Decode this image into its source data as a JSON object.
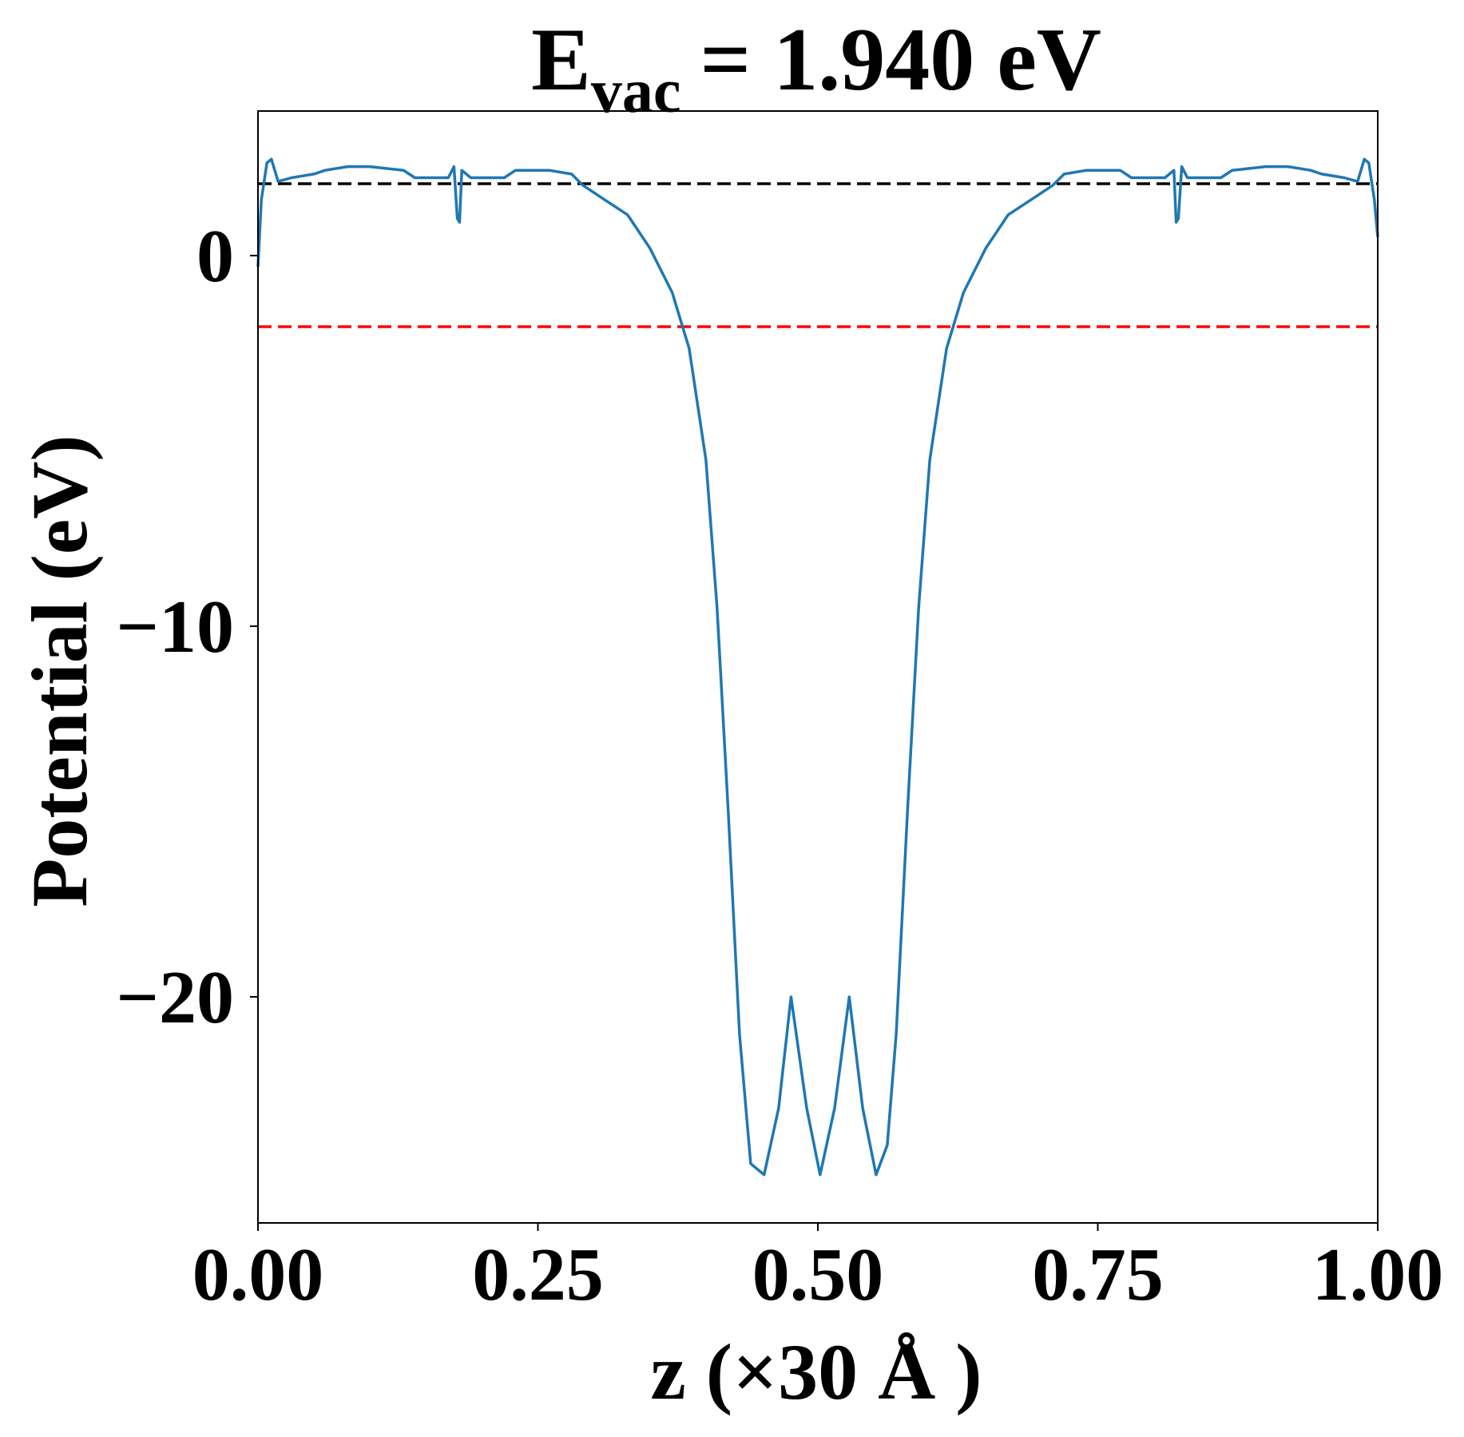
{
  "chart_data": {
    "type": "line",
    "title": {
      "base": "E",
      "subscript": "vac",
      "rest": "= 1.940 eV"
    },
    "x_label": "z (×30 Å )",
    "y_label": "Potential (eV)",
    "xlim": [
      0,
      1
    ],
    "ylim": [
      -26.1,
      3.9
    ],
    "xticks": [
      {
        "value": 0,
        "label": "0.00"
      },
      {
        "value": 0.25,
        "label": "0.25"
      },
      {
        "value": 0.5,
        "label": "0.50"
      },
      {
        "value": 0.75,
        "label": "0.75"
      },
      {
        "value": 1,
        "label": "1.00"
      }
    ],
    "yticks": [
      {
        "value": -20,
        "label": "−20"
      },
      {
        "value": -10,
        "label": "−10"
      },
      {
        "value": 0,
        "label": "0"
      }
    ],
    "hlines": [
      {
        "value": 1.94,
        "color": "#000000"
      },
      {
        "value": -1.92,
        "color": "#ff0000"
      }
    ],
    "series": [
      {
        "color": "#1f77b4",
        "x": [
          0.0,
          0.003,
          0.008,
          0.012,
          0.018,
          0.03,
          0.05,
          0.06,
          0.08,
          0.1,
          0.13,
          0.14,
          0.17,
          0.175,
          0.178,
          0.18,
          0.182,
          0.19,
          0.22,
          0.23,
          0.26,
          0.28,
          0.29,
          0.31,
          0.33,
          0.35,
          0.37,
          0.385,
          0.4,
          0.41,
          0.42,
          0.43,
          0.44,
          0.452,
          0.465,
          0.476,
          0.49,
          0.502,
          0.515,
          0.528,
          0.54,
          0.552,
          0.562,
          0.57,
          0.58,
          0.59,
          0.6,
          0.615,
          0.63,
          0.65,
          0.67,
          0.69,
          0.71,
          0.72,
          0.74,
          0.77,
          0.78,
          0.81,
          0.818,
          0.82,
          0.822,
          0.825,
          0.83,
          0.86,
          0.87,
          0.9,
          0.92,
          0.94,
          0.95,
          0.97,
          0.982,
          0.988,
          0.992,
          0.997,
          1.0
        ],
        "values": [
          -0.3,
          1.5,
          2.5,
          2.6,
          2.0,
          2.1,
          2.2,
          2.3,
          2.4,
          2.4,
          2.3,
          2.1,
          2.1,
          2.4,
          1.0,
          0.9,
          2.3,
          2.1,
          2.1,
          2.3,
          2.3,
          2.2,
          1.9,
          1.5,
          1.1,
          0.2,
          -1.0,
          -2.5,
          -5.5,
          -9.5,
          -15,
          -21,
          -24.5,
          -24.8,
          -23,
          -20.0,
          -23,
          -24.8,
          -23,
          -20.0,
          -23,
          -24.8,
          -24,
          -21,
          -15,
          -9.5,
          -5.5,
          -2.5,
          -1.0,
          0.2,
          1.1,
          1.5,
          1.9,
          2.2,
          2.3,
          2.3,
          2.1,
          2.1,
          2.3,
          0.9,
          1.0,
          2.4,
          2.1,
          2.1,
          2.3,
          2.4,
          2.4,
          2.3,
          2.2,
          2.1,
          2.0,
          2.6,
          2.5,
          1.5,
          0.5
        ]
      }
    ]
  }
}
